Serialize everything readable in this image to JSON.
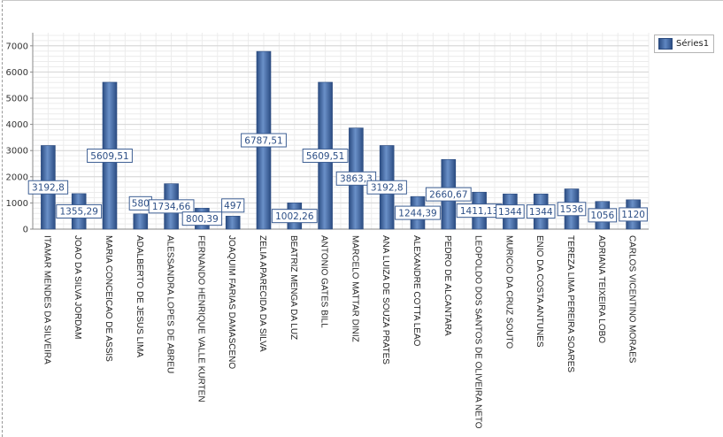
{
  "colors": {
    "bar": "#4a72b0",
    "bar_dark": "#2d4f86",
    "label_border": "#3e5f94",
    "label_text": "#2d4f86",
    "grid": "#e2e2e2"
  },
  "chart_data": {
    "type": "bar",
    "categories": [
      "ITAMAR MENDES DA SILVEIRA",
      "JOAO DA SILVA JORDAM",
      "MARIA CONCEICAO DE ASSIS",
      "ADALBERTO DE JESUS LIMA",
      "ALESSANDRA LOPES DE ABREU",
      "FERNANDO HENRIQUE VALLE KURTEN",
      "JOAQUIM FARIAS DAMASCENO",
      "ZELIA APARECIDA DA SILVA",
      "BEATRIZ MENGA DA LUZ",
      "ANTONIO GATES BILL",
      "MARCELO MATTAR DINIZ",
      "ANA LUIZA  DE SOUZA PRATES",
      "ALEXANDRE COTTA LEAO",
      "PEDRO DE ALCANTARA",
      "LEOPOLDO DOS SANTOS DE OLIVEIRA NETO",
      "MURICIO DA CRUZ SOUTO",
      "ENIO DA COSTA ANTUNES",
      "TEREZA LIMA PEREIRA SOARES",
      "ADRIANA TEIXEIRA LOBO",
      "CARLOS VICENTINO MORAES"
    ],
    "series": [
      {
        "name": "Séries1",
        "values": [
          3192.8,
          1355.29,
          5609.51,
          580,
          1734.66,
          800.39,
          497,
          6787.51,
          1002.26,
          5609.51,
          3863.3,
          3192.8,
          1244.39,
          2660.67,
          1411.13,
          1344,
          1344,
          1536,
          1056,
          1120
        ],
        "labels": [
          "3192,8",
          "1355,29",
          "5609,51",
          "580",
          "1734,66",
          "800,39",
          "497",
          "6787,51",
          "1002,26",
          "5609,51",
          "3863,3",
          "3192,8",
          "1244,39",
          "2660,67",
          "1411,13",
          "1344",
          "1344",
          "1536",
          "1056",
          "1120"
        ]
      }
    ],
    "yticks": [
      "0",
      "1000",
      "2000",
      "3000",
      "4000",
      "5000",
      "6000",
      "7000"
    ],
    "ylim": [
      0,
      7500
    ],
    "grid": true,
    "legend_position": "top-right"
  }
}
